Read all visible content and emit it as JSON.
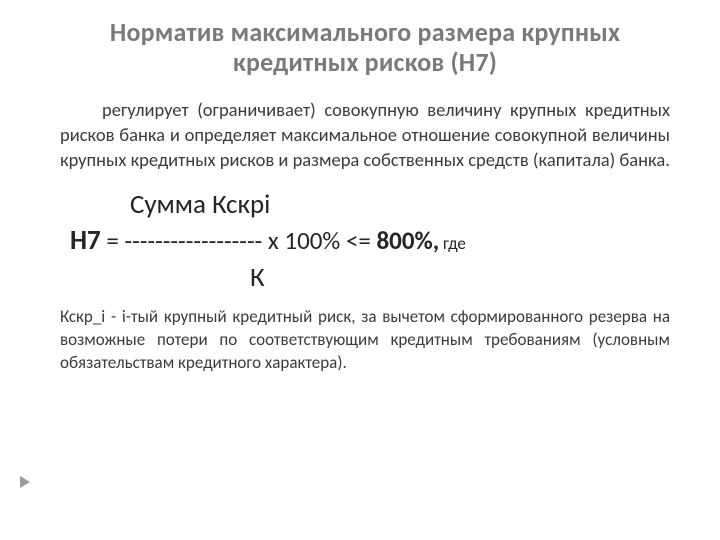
{
  "colors": {
    "background": "#ffffff",
    "title": "#7a7a7a",
    "body_text": "#3b3b3b",
    "formula_text": "#252525",
    "marker": "#9a9a9a"
  },
  "typography": {
    "title_fontsize": 26,
    "title_weight": 700,
    "body_fontsize": 18.5,
    "formula_fontsize": 27,
    "def_fontsize": 17,
    "font_family": "Calibri / Arial"
  },
  "title": "Норматив максимального размера крупных кредитных рисков (Н7)",
  "paragraph": "регулирует (ограничивает) совокупную величину крупных кредитных рисков банка и определяет максимальное отношение совокупной величины крупных кредитных рисков и размера собственных средств (капитала) банка.",
  "formula": {
    "numerator": "Сумма Кскрi",
    "lhs_symbol": "Н7",
    "equals": " = ",
    "fraction_dashes": "------------------",
    "times": " х ",
    "percent": "100%",
    "relation": " <= ",
    "limit": "800%,",
    "gde": " где",
    "denominator": "К"
  },
  "definition": "Кскр_i - i-тый крупный кредитный риск, за вычетом сформированного резерва на возможные потери по соответствующим кредитным требованиям (условным обязательствам кредитного характера)."
}
